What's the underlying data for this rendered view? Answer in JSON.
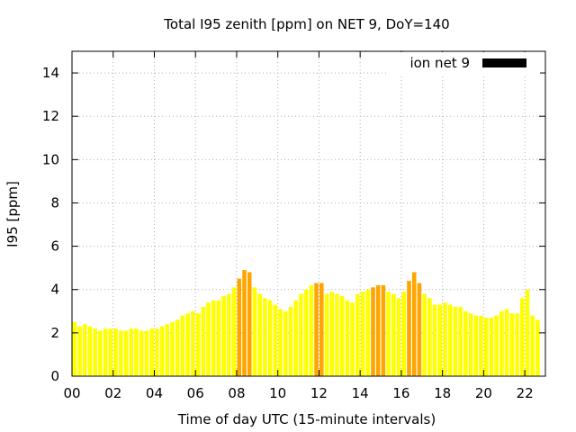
{
  "chart_data": {
    "type": "bar",
    "title": "Total I95 zenith [ppm] on NET 9, DoY=140",
    "xlabel": "Time of day UTC (15-minute intervals)",
    "ylabel": "I95 [ppm]",
    "xlim": [
      0,
      23
    ],
    "ylim": [
      0,
      15
    ],
    "x_ticks": [
      "00",
      "02",
      "04",
      "06",
      "08",
      "10",
      "12",
      "14",
      "16",
      "18",
      "20",
      "22"
    ],
    "y_ticks": [
      "0",
      "2",
      "4",
      "6",
      "8",
      "10",
      "12",
      "14"
    ],
    "grid": true,
    "legend": {
      "position": "top-right",
      "entries": [
        {
          "label": "ion net 9",
          "color": "#000000"
        }
      ]
    },
    "colors": {
      "low": "#ffff00",
      "high": "#ffa500",
      "grid": "#b0b0b0"
    },
    "interval_hours": 0.25,
    "values": [
      2.5,
      2.3,
      2.4,
      2.3,
      2.2,
      2.1,
      2.2,
      2.2,
      2.2,
      2.1,
      2.1,
      2.2,
      2.2,
      2.1,
      2.1,
      2.2,
      2.2,
      2.3,
      2.4,
      2.5,
      2.6,
      2.8,
      2.9,
      3.0,
      2.9,
      3.2,
      3.4,
      3.5,
      3.5,
      3.7,
      3.8,
      4.1,
      4.5,
      4.9,
      4.8,
      4.1,
      3.8,
      3.6,
      3.5,
      3.3,
      3.1,
      3.0,
      3.2,
      3.5,
      3.8,
      4.0,
      4.2,
      4.3,
      4.3,
      3.8,
      3.9,
      3.8,
      3.7,
      3.5,
      3.4,
      3.8,
      3.9,
      4.0,
      4.1,
      4.2,
      4.2,
      3.9,
      3.8,
      3.6,
      3.9,
      4.4,
      4.8,
      4.3,
      3.8,
      3.6,
      3.3,
      3.3,
      3.4,
      3.3,
      3.2,
      3.2,
      3.0,
      2.9,
      2.8,
      2.8,
      2.7,
      2.7,
      2.8,
      3.0,
      3.1,
      2.9,
      2.9,
      3.6,
      4.0,
      2.8,
      2.6
    ],
    "highlighted_indices": [
      32,
      33,
      34,
      47,
      48,
      58,
      59,
      60,
      65,
      66,
      67
    ]
  }
}
